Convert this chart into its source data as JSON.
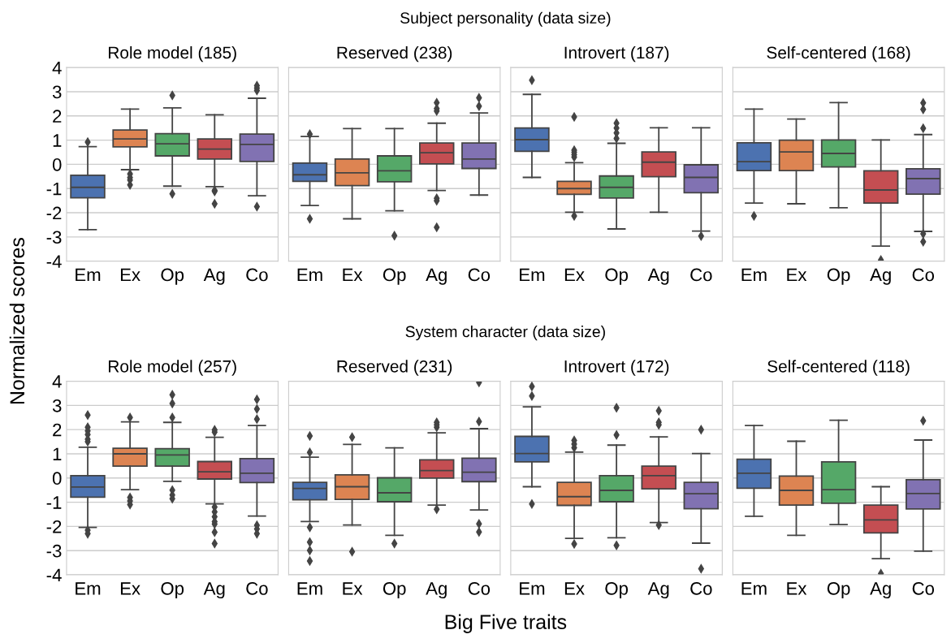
{
  "chart_data": [
    {
      "type": "box",
      "title": "Role model (185)",
      "ylabel": "Normalized scores",
      "categories": [
        "Em",
        "Ex",
        "Op",
        "Ag",
        "Co"
      ],
      "colors": [
        "#4c72b0",
        "#dd8452",
        "#55a868",
        "#c44e52",
        "#8172b2"
      ],
      "ylim": [
        -4,
        4
      ],
      "yticks": [
        -4,
        -3,
        -2,
        -1,
        0,
        1,
        2,
        3,
        4
      ],
      "grid": "y",
      "marker": "diamond",
      "boxes": [
        {
          "low": -2.7,
          "q1": -1.38,
          "median": -0.95,
          "q3": -0.45,
          "high": 0.73,
          "outliers": [
            0.92
          ]
        },
        {
          "low": -0.22,
          "q1": 0.72,
          "median": 1.05,
          "q3": 1.42,
          "high": 2.28,
          "outliers": [
            -0.4,
            -0.55,
            -0.65,
            -0.85
          ]
        },
        {
          "low": -0.9,
          "q1": 0.35,
          "median": 0.85,
          "q3": 1.27,
          "high": 2.33,
          "outliers": [
            2.85,
            -1.22
          ]
        },
        {
          "low": -0.92,
          "q1": 0.22,
          "median": 0.63,
          "q3": 1.05,
          "high": 2.05,
          "outliers": [
            -1.08,
            -1.12,
            -1.63
          ]
        },
        {
          "low": -1.3,
          "q1": 0.12,
          "median": 0.82,
          "q3": 1.25,
          "high": 2.73,
          "outliers": [
            3.05,
            3.15,
            3.25,
            -1.75
          ]
        }
      ]
    },
    {
      "type": "box",
      "title": "Reserved (238)",
      "categories": [
        "Em",
        "Ex",
        "Op",
        "Ag",
        "Co"
      ],
      "colors": [
        "#4c72b0",
        "#dd8452",
        "#55a868",
        "#c44e52",
        "#8172b2"
      ],
      "ylim": [
        -4,
        4
      ],
      "yticks": [
        -4,
        -3,
        -2,
        -1,
        0,
        1,
        2,
        3,
        4
      ],
      "grid": "y",
      "marker": "diamond",
      "tick_labels": "x",
      "boxes": [
        {
          "low": -1.7,
          "q1": -0.7,
          "median": -0.43,
          "q3": 0.05,
          "high": 1.15,
          "outliers": [
            1.25,
            -2.25
          ]
        },
        {
          "low": -2.25,
          "q1": -0.88,
          "median": -0.35,
          "q3": 0.22,
          "high": 1.48
        },
        {
          "low": -1.92,
          "q1": -0.72,
          "median": -0.27,
          "q3": 0.35,
          "high": 1.48,
          "outliers": [
            -2.95
          ]
        },
        {
          "low": -1.08,
          "q1": 0.02,
          "median": 0.48,
          "q3": 0.88,
          "high": 1.7,
          "outliers": [
            2.2,
            2.3,
            2.55,
            -1.4,
            -1.5,
            -2.6
          ]
        },
        {
          "low": -1.27,
          "q1": -0.17,
          "median": 0.22,
          "q3": 0.88,
          "high": 2.12,
          "outliers": [
            2.4,
            2.75
          ]
        }
      ]
    },
    {
      "type": "box",
      "title": "Introvert (187)",
      "categories": [
        "Em",
        "Ex",
        "Op",
        "Ag",
        "Co"
      ],
      "colors": [
        "#4c72b0",
        "#dd8452",
        "#55a868",
        "#c44e52",
        "#8172b2"
      ],
      "ylim": [
        -4,
        4
      ],
      "yticks": [
        -4,
        -3,
        -2,
        -1,
        0,
        1,
        2,
        3,
        4
      ],
      "grid": "y",
      "marker": "diamond",
      "tick_labels": "x",
      "boxes": [
        {
          "low": -0.54,
          "q1": 0.54,
          "median": 1.02,
          "q3": 1.5,
          "high": 2.89,
          "outliers": [
            3.48
          ]
        },
        {
          "low": -1.98,
          "q1": -1.24,
          "median": -1.0,
          "q3": -0.7,
          "high": 0.07,
          "outliers": [
            1.96,
            0.3,
            0.4,
            0.5,
            0.58,
            -2.13
          ]
        },
        {
          "low": -2.67,
          "q1": -1.39,
          "median": -0.95,
          "q3": -0.48,
          "high": 0.87,
          "outliers": [
            1.07,
            1.3,
            1.5,
            1.7
          ]
        },
        {
          "low": -1.98,
          "q1": -0.51,
          "median": 0.09,
          "q3": 0.51,
          "high": 1.51
        },
        {
          "low": -2.76,
          "q1": -1.17,
          "median": -0.54,
          "q3": -0.02,
          "high": 1.51,
          "outliers": [
            -2.96
          ]
        }
      ]
    },
    {
      "type": "box",
      "title": "Self-centered (168)",
      "categories": [
        "Em",
        "Ex",
        "Op",
        "Ag",
        "Co"
      ],
      "colors": [
        "#4c72b0",
        "#dd8452",
        "#55a868",
        "#c44e52",
        "#8172b2"
      ],
      "ylim": [
        -4,
        4
      ],
      "yticks": [
        -4,
        -3,
        -2,
        -1,
        0,
        1,
        2,
        3,
        4
      ],
      "grid": "y",
      "marker": "diamond",
      "tick_labels": "x",
      "boxes": [
        {
          "low": -1.6,
          "q1": -0.26,
          "median": 0.11,
          "q3": 0.89,
          "high": 2.28,
          "outliers": [
            -2.13
          ]
        },
        {
          "low": -1.63,
          "q1": -0.26,
          "median": 0.51,
          "q3": 1.0,
          "high": 1.87
        },
        {
          "low": -1.79,
          "q1": -0.11,
          "median": 0.45,
          "q3": 1.01,
          "high": 2.55
        },
        {
          "low": -3.38,
          "q1": -1.6,
          "median": -1.06,
          "q3": -0.27,
          "high": 1.01,
          "outliers": [
            -3.95
          ]
        },
        {
          "low": -2.77,
          "q1": -1.23,
          "median": -0.59,
          "q3": -0.18,
          "high": 1.23,
          "outliers": [
            2.54,
            2.27,
            1.49,
            -2.87,
            -3.2
          ]
        }
      ]
    },
    {
      "type": "box",
      "title": "Role model (257)",
      "categories": [
        "Em",
        "Ex",
        "Op",
        "Ag",
        "Co"
      ],
      "colors": [
        "#4c72b0",
        "#dd8452",
        "#55a868",
        "#c44e52",
        "#8172b2"
      ],
      "ylim": [
        -4,
        4
      ],
      "yticks": [
        -4,
        -3,
        -2,
        -1,
        0,
        1,
        2,
        3,
        4
      ],
      "grid": "y",
      "marker": "diamond",
      "boxes": [
        {
          "low": -2.04,
          "q1": -0.79,
          "median": -0.37,
          "q3": 0.1,
          "high": 1.27,
          "outliers": [
            2.6,
            2.1,
            1.95,
            1.8,
            1.6,
            1.5,
            -2.15,
            -2.3
          ]
        },
        {
          "low": -0.48,
          "q1": 0.49,
          "median": 1.0,
          "q3": 1.23,
          "high": 2.32,
          "outliers": [
            2.5,
            -0.8,
            -0.95,
            -1.1
          ]
        },
        {
          "low": -0.14,
          "q1": 0.49,
          "median": 0.95,
          "q3": 1.21,
          "high": 2.3,
          "outliers": [
            3.44,
            3.08,
            2.5,
            -0.5,
            -0.7,
            -0.85
          ]
        },
        {
          "low": -1.07,
          "q1": -0.04,
          "median": 0.26,
          "q3": 0.68,
          "high": 1.68,
          "outliers": [
            1.99,
            1.9,
            -1.2,
            -1.4,
            -1.6,
            -1.8,
            -1.9,
            -2.24,
            -2.71
          ]
        },
        {
          "low": -1.57,
          "q1": -0.19,
          "median": 0.2,
          "q3": 0.8,
          "high": 2.17,
          "outliers": [
            3.25,
            2.85,
            2.43,
            -1.95,
            -2.1,
            -2.3
          ]
        }
      ]
    },
    {
      "type": "box",
      "title": "Reserved (231)",
      "categories": [
        "Em",
        "Ex",
        "Op",
        "Ag",
        "Co"
      ],
      "colors": [
        "#4c72b0",
        "#dd8452",
        "#55a868",
        "#c44e52",
        "#8172b2"
      ],
      "ylim": [
        -4,
        4
      ],
      "yticks": [
        -4,
        -3,
        -2,
        -1,
        0,
        1,
        2,
        3,
        4
      ],
      "grid": "y",
      "marker": "diamond",
      "tick_labels": "x",
      "boxes": [
        {
          "low": -1.8,
          "q1": -0.9,
          "median": -0.43,
          "q3": -0.18,
          "high": 0.86,
          "outliers": [
            1.74,
            1.06,
            -2.04,
            -2.65,
            -2.99,
            -3.43
          ]
        },
        {
          "low": -1.94,
          "q1": -0.88,
          "median": -0.36,
          "q3": 0.13,
          "high": 1.39,
          "outliers": [
            1.69,
            -3.04
          ]
        },
        {
          "low": -2.37,
          "q1": -0.98,
          "median": -0.61,
          "q3": 0.01,
          "high": 1.25,
          "outliers": [
            -2.71
          ]
        },
        {
          "low": -1.12,
          "q1": 0.0,
          "median": 0.31,
          "q3": 0.75,
          "high": 1.87,
          "outliers": [
            2.1,
            2.2,
            2.3,
            -1.29
          ]
        },
        {
          "low": -1.32,
          "q1": -0.15,
          "median": 0.24,
          "q3": 0.82,
          "high": 2.04,
          "outliers": [
            3.95,
            2.33,
            -1.89,
            -2.23
          ]
        }
      ]
    },
    {
      "type": "box",
      "title": "Introvert (172)",
      "categories": [
        "Em",
        "Ex",
        "Op",
        "Ag",
        "Co"
      ],
      "colors": [
        "#4c72b0",
        "#dd8452",
        "#55a868",
        "#c44e52",
        "#8172b2"
      ],
      "ylim": [
        -4,
        4
      ],
      "yticks": [
        -4,
        -3,
        -2,
        -1,
        0,
        1,
        2,
        3,
        4
      ],
      "grid": "y",
      "marker": "diamond",
      "tick_labels": "x",
      "boxes": [
        {
          "low": -0.36,
          "q1": 0.67,
          "median": 1.01,
          "q3": 1.72,
          "high": 2.94,
          "outliers": [
            3.78,
            3.39,
            -1.07
          ]
        },
        {
          "low": -2.49,
          "q1": -1.13,
          "median": -0.77,
          "q3": -0.18,
          "high": 1.07,
          "outliers": [
            1.25,
            1.4,
            1.55,
            -2.72
          ]
        },
        {
          "low": -2.47,
          "q1": -0.98,
          "median": -0.51,
          "q3": 0.1,
          "high": 1.36,
          "outliers": [
            2.9,
            1.78,
            -2.78
          ]
        },
        {
          "low": -1.84,
          "q1": -0.45,
          "median": 0.1,
          "q3": 0.49,
          "high": 1.7,
          "outliers": [
            2.78,
            2.3,
            2.2,
            -1.94
          ]
        },
        {
          "low": -2.69,
          "q1": -1.27,
          "median": -0.65,
          "q3": -0.18,
          "high": 1.01,
          "outliers": [
            2.0,
            -3.75
          ]
        }
      ]
    },
    {
      "type": "box",
      "title": "Self-centered (118)",
      "categories": [
        "Em",
        "Ex",
        "Op",
        "Ag",
        "Co"
      ],
      "colors": [
        "#4c72b0",
        "#dd8452",
        "#55a868",
        "#c44e52",
        "#8172b2"
      ],
      "ylim": [
        -4,
        4
      ],
      "yticks": [
        -4,
        -3,
        -2,
        -1,
        0,
        1,
        2,
        3,
        4
      ],
      "grid": "y",
      "marker": "diamond",
      "tick_labels": "x",
      "boxes": [
        {
          "low": -1.58,
          "q1": -0.42,
          "median": 0.2,
          "q3": 0.78,
          "high": 2.17
        },
        {
          "low": -2.37,
          "q1": -1.12,
          "median": -0.51,
          "q3": 0.08,
          "high": 1.52
        },
        {
          "low": -1.92,
          "q1": -1.04,
          "median": -0.48,
          "q3": 0.67,
          "high": 2.39
        },
        {
          "low": -3.33,
          "q1": -2.27,
          "median": -1.73,
          "q3": -1.12,
          "high": -0.36,
          "outliers": [
            -3.95
          ]
        },
        {
          "low": -3.02,
          "q1": -1.28,
          "median": -0.64,
          "q3": -0.07,
          "high": 1.57,
          "outliers": [
            2.37
          ]
        }
      ]
    },
    {
      "type": "other",
      "annotations": [
        "Subject personality (data size)",
        "System character (data size)",
        "Big Five traits"
      ]
    }
  ]
}
